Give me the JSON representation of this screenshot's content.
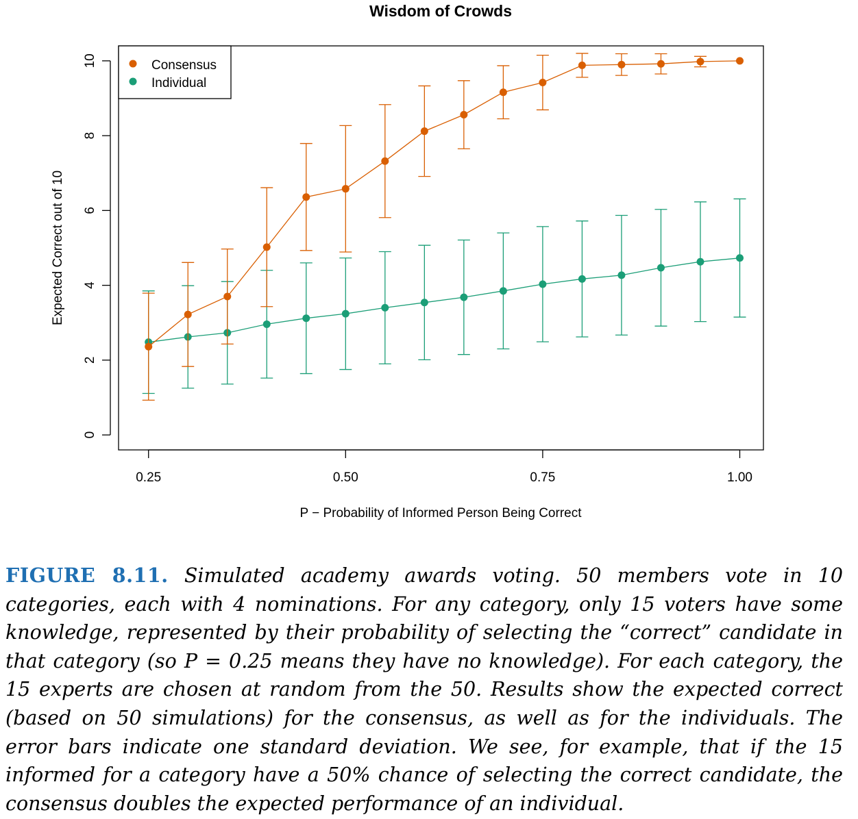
{
  "chart_data": {
    "type": "line",
    "title": "Wisdom of Crowds",
    "xlabel": "P −  Probability of Informed Person Being Correct",
    "ylabel": "Expected Correct out of 10",
    "x_ticks": [
      "0.25",
      "0.50",
      "0.75",
      "1.00"
    ],
    "x_tick_values": [
      0.25,
      0.5,
      0.75,
      1.0
    ],
    "y_ticks": [
      "0",
      "2",
      "4",
      "6",
      "8",
      "10"
    ],
    "y_tick_values": [
      0,
      2,
      4,
      6,
      8,
      10
    ],
    "xlim": [
      0.212,
      1.03
    ],
    "ylim": [
      -0.4,
      10.4
    ],
    "legend_position": "top-left",
    "grid": false,
    "x": [
      0.25,
      0.3,
      0.35,
      0.4,
      0.45,
      0.5,
      0.55,
      0.6,
      0.65,
      0.7,
      0.75,
      0.8,
      0.85,
      0.9,
      0.95,
      1.0
    ],
    "series": [
      {
        "name": "Consensus",
        "color": "#d95f02",
        "values": [
          2.36,
          3.22,
          3.7,
          5.02,
          6.36,
          6.58,
          7.32,
          8.12,
          8.56,
          9.16,
          9.42,
          9.88,
          9.9,
          9.92,
          9.98,
          10.0
        ],
        "error_low": [
          0.93,
          1.83,
          2.43,
          3.43,
          4.93,
          4.89,
          5.81,
          6.91,
          7.65,
          8.45,
          8.69,
          9.56,
          9.61,
          9.65,
          9.84,
          10.0
        ],
        "error_high": [
          3.79,
          4.61,
          4.97,
          6.61,
          7.79,
          8.27,
          8.83,
          9.33,
          9.47,
          9.87,
          10.15,
          10.2,
          10.19,
          10.19,
          10.12,
          10.0
        ]
      },
      {
        "name": "Individual",
        "color": "#1b9e77",
        "values": [
          2.48,
          2.62,
          2.73,
          2.96,
          3.12,
          3.24,
          3.4,
          3.54,
          3.68,
          3.85,
          4.03,
          4.17,
          4.27,
          4.47,
          4.63,
          4.73
        ],
        "error_low": [
          1.11,
          1.25,
          1.36,
          1.52,
          1.64,
          1.75,
          1.9,
          2.01,
          2.15,
          2.3,
          2.49,
          2.62,
          2.67,
          2.91,
          3.03,
          3.15
        ],
        "error_high": [
          3.85,
          3.99,
          4.1,
          4.4,
          4.6,
          4.73,
          4.9,
          5.07,
          5.21,
          5.4,
          5.57,
          5.72,
          5.87,
          6.03,
          6.23,
          6.31
        ]
      }
    ]
  },
  "caption": {
    "label": "FIGURE 8.11.",
    "text": "Simulated academy awards voting. 50 members vote in 10 categories, each with 4 nominations. For any category, only 15 voters have some knowledge, represented by their probability of selecting the “correct” candidate in that category (so P = 0.25 means they have no knowledge). For each category, the 15 experts are chosen at random from the 50. Results show the expected correct (based on 50 simulations) for the consensus, as well as for the individuals. The error bars indicate one standard deviation. We see, for example, that if the 15 informed for a category have a 50% chance of selecting the correct candidate, the consensus doubles the expected performance of an individual."
  }
}
